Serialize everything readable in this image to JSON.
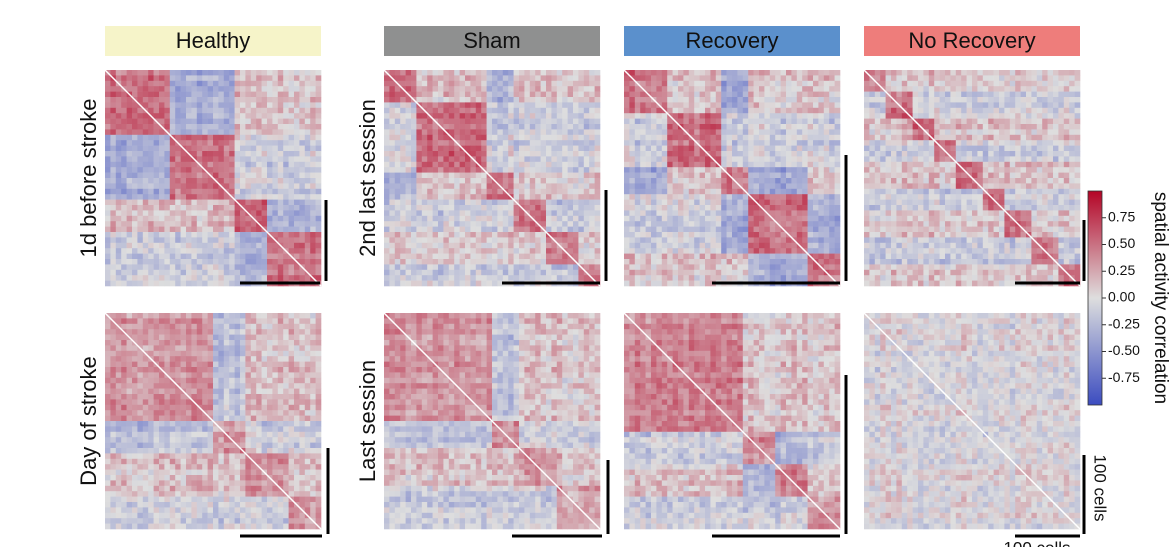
{
  "chart_data": {
    "type": "heatmap",
    "columns": [
      "Healthy",
      "Sham",
      "Recovery",
      "No Recovery"
    ],
    "column_colors": [
      "#f6f4c9",
      "#8f9090",
      "#5b90cc",
      "#ee7d7b"
    ],
    "row_labels": [
      [
        "1d before stroke",
        "Day of stroke"
      ],
      [
        "2nd last session",
        "Last session"
      ]
    ],
    "colorbar": {
      "label": "spatial activity correlation",
      "clim": [
        -1,
        1
      ],
      "ticks": [
        {
          "value": 0.75,
          "label": "0.75"
        },
        {
          "value": 0.5,
          "label": "0.50"
        },
        {
          "value": 0.25,
          "label": "0.25"
        },
        {
          "value": 0,
          "label": "0.00"
        },
        {
          "value": -0.25,
          "label": "-0.25"
        },
        {
          "value": -0.5,
          "label": "-0.50"
        },
        {
          "value": -0.75,
          "label": "-0.75"
        }
      ]
    },
    "scale_label": "100 cells"
  }
}
